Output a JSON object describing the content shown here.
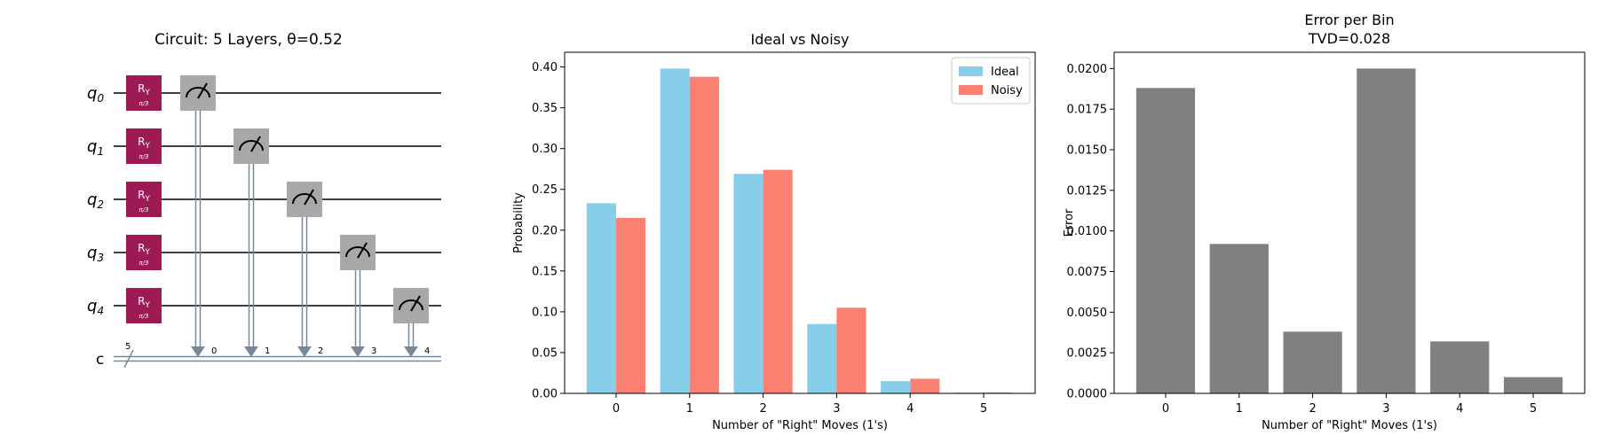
{
  "circuit": {
    "title": "Circuit: 5 Layers, θ=0.52",
    "qubits": [
      {
        "base": "q",
        "sub": "0"
      },
      {
        "base": "q",
        "sub": "1"
      },
      {
        "base": "q",
        "sub": "2"
      },
      {
        "base": "q",
        "sub": "3"
      },
      {
        "base": "q",
        "sub": "4"
      }
    ],
    "gate": {
      "base": "R",
      "sub": "Y",
      "param": "π/3"
    },
    "classical_register": {
      "label": "c",
      "width": "5"
    },
    "measure_targets": [
      "0",
      "1",
      "2",
      "3",
      "4"
    ],
    "colors": {
      "gate": "#9e1a55",
      "measure": "#a8a8a8",
      "wire": "#000000",
      "classical": "#778899"
    }
  },
  "chart_data": [
    {
      "type": "bar",
      "title": "Ideal vs Noisy",
      "xlabel": "Number of \"Right\" Moves (1's)",
      "ylabel": "Probability",
      "categories": [
        "0",
        "1",
        "2",
        "3",
        "4",
        "5"
      ],
      "series": [
        {
          "name": "Ideal",
          "values": [
            0.233,
            0.398,
            0.269,
            0.085,
            0.015,
            0.001
          ],
          "color": "#87ceeb"
        },
        {
          "name": "Noisy",
          "values": [
            0.215,
            0.388,
            0.274,
            0.105,
            0.018,
            0.001
          ],
          "color": "#fa8072"
        }
      ],
      "yticks": [
        "0.00",
        "0.05",
        "0.10",
        "0.15",
        "0.20",
        "0.25",
        "0.30",
        "0.35",
        "0.40"
      ],
      "ylim": [
        0,
        0.418
      ],
      "legend": "top-right",
      "grid": false
    },
    {
      "type": "bar",
      "title": "Error per Bin",
      "subtitle": "TVD=0.028",
      "xlabel": "Number of \"Right\" Moves (1's)",
      "ylabel": "Error",
      "categories": [
        "0",
        "1",
        "2",
        "3",
        "4",
        "5"
      ],
      "values": [
        0.0188,
        0.0092,
        0.0038,
        0.02,
        0.0032,
        0.001
      ],
      "color": "#808080",
      "yticks": [
        "0.0000",
        "0.0025",
        "0.0050",
        "0.0075",
        "0.0100",
        "0.0125",
        "0.0150",
        "0.0175",
        "0.0200"
      ],
      "ylim": [
        0,
        0.021
      ],
      "grid": false
    }
  ]
}
